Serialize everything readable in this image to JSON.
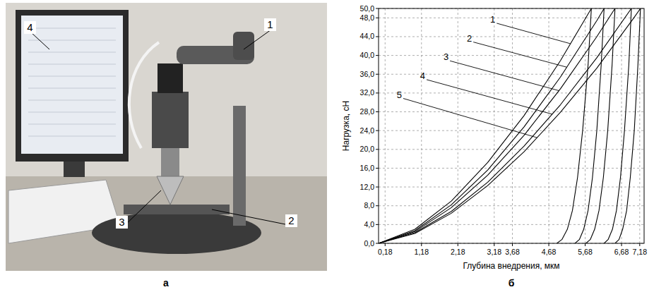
{
  "photo": {
    "caption": "а",
    "labels": [
      "1",
      "2",
      "3",
      "4"
    ]
  },
  "chart_data": {
    "type": "line",
    "caption": "б",
    "x_label": "Глубина внедрения, мкм",
    "y_label": "Нагрузка, сН",
    "xlim": [
      0,
      7.3
    ],
    "ylim": [
      0,
      50
    ],
    "xticks": [
      {
        "value": 0.18,
        "label": "0,18"
      },
      {
        "value": 1.18,
        "label": "1,18"
      },
      {
        "value": 2.18,
        "label": "2,18"
      },
      {
        "value": 3.18,
        "label": "3,18"
      },
      {
        "value": 3.68,
        "label": "3,68"
      },
      {
        "value": 4.68,
        "label": "4,68"
      },
      {
        "value": 5.68,
        "label": "5,68"
      },
      {
        "value": 6.68,
        "label": "6,68"
      },
      {
        "value": 7.18,
        "label": "7,18"
      }
    ],
    "yticks": [
      {
        "value": 0,
        "label": "0,0"
      },
      {
        "value": 4,
        "label": "4,0"
      },
      {
        "value": 8,
        "label": "8,0"
      },
      {
        "value": 12,
        "label": "12,0"
      },
      {
        "value": 16,
        "label": "16,0"
      },
      {
        "value": 20,
        "label": "20,0"
      },
      {
        "value": 24,
        "label": "24,0"
      },
      {
        "value": 28,
        "label": "28,0"
      },
      {
        "value": 32,
        "label": "32,0"
      },
      {
        "value": 36,
        "label": "36,0"
      },
      {
        "value": 40,
        "label": "40,0"
      },
      {
        "value": 44,
        "label": "44,0"
      },
      {
        "value": 48,
        "label": "48,0"
      },
      {
        "value": 50,
        "label": "50,0"
      }
    ],
    "grid": true,
    "series": [
      {
        "name": "1",
        "color": "#000000",
        "x": [
          0,
          1,
          2,
          3,
          4,
          5,
          5.85,
          5.76,
          5.61,
          5.47,
          5.33,
          5.19,
          5.04,
          4.9
        ],
        "values": [
          0,
          3.0,
          9.0,
          17.2,
          27.2,
          38.9,
          50,
          38,
          24,
          14,
          7,
          3,
          0.8,
          0
        ]
      },
      {
        "name": "2",
        "color": "#000000",
        "x": [
          0,
          1,
          2,
          3,
          4,
          5,
          6,
          6.2,
          6.12,
          6.0,
          5.88,
          5.76,
          5.64,
          5.52,
          5.4
        ],
        "values": [
          0,
          2.7,
          8.2,
          15.6,
          24.8,
          35.4,
          47.4,
          50,
          38,
          24,
          14,
          7,
          3,
          0.8,
          0
        ]
      },
      {
        "name": "3",
        "color": "#000000",
        "x": [
          0,
          1,
          2,
          3,
          4,
          5,
          6,
          6.5,
          6.42,
          6.3,
          6.18,
          6.06,
          5.94,
          5.82,
          5.7
        ],
        "values": [
          0,
          2.5,
          7.6,
          14.5,
          23.0,
          32.9,
          44.0,
          50,
          38,
          24,
          14,
          7,
          3,
          0.8,
          0
        ]
      },
      {
        "name": "4",
        "color": "#000000",
        "x": [
          0,
          1,
          2,
          3,
          4,
          5,
          6,
          6.95,
          6.88,
          6.76,
          6.65,
          6.54,
          6.43,
          6.31,
          6.2
        ],
        "values": [
          0,
          2.3,
          6.8,
          13.0,
          20.7,
          29.5,
          39.5,
          50,
          38,
          24,
          14,
          7,
          3,
          0.8,
          0
        ]
      },
      {
        "name": "5",
        "color": "#000000",
        "x": [
          0,
          1,
          2,
          3,
          4,
          5,
          6,
          7,
          7.2,
          7.13,
          7.03,
          6.92,
          6.82,
          6.71,
          6.61,
          6.5
        ],
        "values": [
          0,
          2.1,
          6.4,
          12.3,
          19.5,
          27.9,
          37.3,
          47.8,
          50,
          38,
          24,
          14,
          7,
          3,
          0.8,
          0
        ]
      }
    ]
  }
}
